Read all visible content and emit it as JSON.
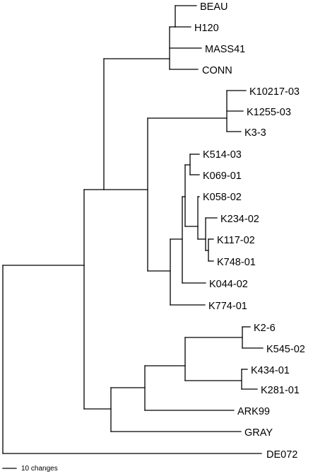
{
  "tree": {
    "leaves": [
      "BEAU",
      "H120",
      "MASS41",
      "CONN",
      "K10217-03",
      "K1255-03",
      "K3-3",
      "K514-03",
      "K069-01",
      "K058-02",
      "K234-02",
      "K117-02",
      "K748-01",
      "K044-02",
      "K774-01",
      "K2-6",
      "K545-02",
      "K434-01",
      "K281-01",
      "ARK99",
      "GRAY",
      "DE072"
    ]
  },
  "scale_bar": {
    "label": "10 changes"
  },
  "colors": {
    "line": "#000000",
    "background": "#ffffff"
  }
}
